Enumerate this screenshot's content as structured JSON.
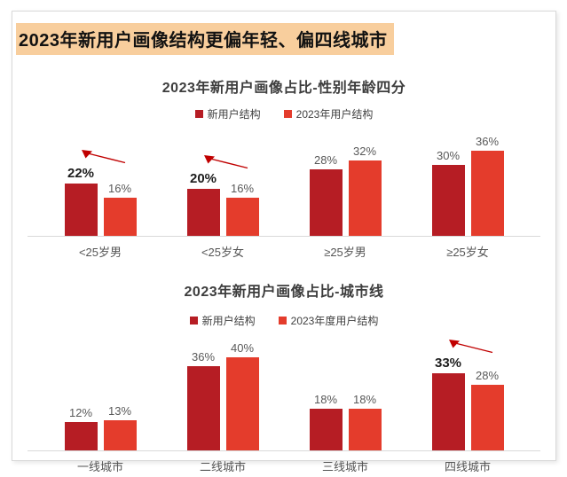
{
  "window": {
    "headline": "2023年新用户画像结构更偏年轻、偏四线城市"
  },
  "colors": {
    "series1": "#B61D24",
    "series2": "#E43C2C",
    "arrow": "#C00000",
    "headline_highlight": "#F8CE9D",
    "axis_line": "#D9D9D9"
  },
  "chart_data": [
    {
      "type": "bar",
      "title": "2023年新用户画像占比-性别年龄四分",
      "unit": "%",
      "grid": false,
      "legend_position": "top",
      "value_labels": true,
      "ylim": [
        0,
        40
      ],
      "categories": [
        "<25岁男",
        "<25岁女",
        "≥25岁男",
        "≥25岁女"
      ],
      "series": [
        {
          "name": "新用户结构",
          "color": "#B61D24",
          "values": [
            22,
            20,
            28,
            30
          ]
        },
        {
          "name": "2023年用户结构",
          "color": "#E43C2C",
          "values": [
            16,
            16,
            32,
            36
          ]
        }
      ],
      "emphasized_categories": [
        true,
        true,
        false,
        false
      ],
      "trend_arrows": [
        true,
        true,
        false,
        false
      ]
    },
    {
      "type": "bar",
      "title": "2023年新用户画像占比-城市线",
      "unit": "%",
      "grid": false,
      "legend_position": "top",
      "value_labels": true,
      "ylim": [
        0,
        45
      ],
      "categories": [
        "一线城市",
        "二线城市",
        "三线城市",
        "四线城市"
      ],
      "series": [
        {
          "name": "新用户结构",
          "color": "#B61D24",
          "values": [
            12,
            36,
            18,
            33
          ]
        },
        {
          "name": "2023年度用户结构",
          "color": "#E43C2C",
          "values": [
            13,
            40,
            18,
            28
          ]
        }
      ],
      "emphasized_categories": [
        false,
        false,
        false,
        true
      ],
      "trend_arrows": [
        false,
        false,
        false,
        true
      ]
    }
  ]
}
